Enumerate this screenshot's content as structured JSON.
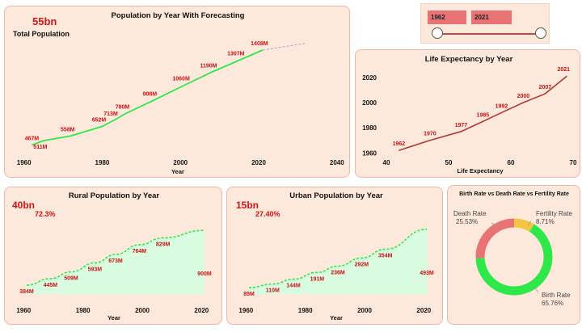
{
  "colors": {
    "panel": "#fde9dc",
    "border": "#f0b4a4",
    "green": "#2ee84a",
    "red_label": "#c81414",
    "life": "#b23a30",
    "death": "#e87274",
    "fertility": "#f4c542",
    "birth": "#2ee84a"
  },
  "total": {
    "value": "55bn",
    "label": "Total Population"
  },
  "slider": {
    "start": "1962",
    "end": "2021"
  },
  "rural": {
    "value": "40bn",
    "pct": "72.3%"
  },
  "urban": {
    "value": "15bn",
    "pct": "27.40%"
  },
  "donut_labels": {
    "death_name": "Death Rate",
    "death_pct": "25.53%",
    "fert_name": "Fertility Rate",
    "fert_pct": "8.71%",
    "birth_name": "Birth Rate",
    "birth_pct": "65.76%"
  },
  "chart_data": [
    {
      "type": "line",
      "title": "Population by Year With Forecasting",
      "xlabel": "Year",
      "xlim": [
        1958,
        2045
      ],
      "x_ticks": [
        1960,
        1980,
        2000,
        2020,
        2040
      ],
      "points": [
        {
          "x": 1962,
          "y": 467,
          "label": "467M"
        },
        {
          "x": 1965,
          "y": 511,
          "label": "511M"
        },
        {
          "x": 1972,
          "y": 558,
          "label": "558M"
        },
        {
          "x": 1980,
          "y": 652,
          "label": "652M"
        },
        {
          "x": 1983,
          "y": 713,
          "label": "713M"
        },
        {
          "x": 1986,
          "y": 780,
          "label": "780M"
        },
        {
          "x": 1993,
          "y": 908,
          "label": "908M"
        },
        {
          "x": 2001,
          "y": 1060,
          "label": "1060M"
        },
        {
          "x": 2008,
          "y": 1190,
          "label": "1190M"
        },
        {
          "x": 2015,
          "y": 1307,
          "label": "1307M"
        },
        {
          "x": 2021,
          "y": 1408,
          "label": "1408M"
        }
      ],
      "forecast": [
        {
          "x": 2021,
          "y": 1408
        },
        {
          "x": 2032,
          "y": 1475
        }
      ]
    },
    {
      "type": "line",
      "title": "Life Expectancy by Year",
      "xlabel": "Life Expectancy",
      "xlim": [
        40,
        70
      ],
      "ylim": [
        1957,
        2025
      ],
      "x_ticks": [
        40,
        50,
        60,
        70
      ],
      "y_ticks": [
        1960,
        1980,
        2000,
        2020
      ],
      "points": [
        {
          "x": 42,
          "y": 1962,
          "label": "1962"
        },
        {
          "x": 47,
          "y": 1970,
          "label": "1970"
        },
        {
          "x": 52,
          "y": 1977,
          "label": "1977"
        },
        {
          "x": 55.5,
          "y": 1985,
          "label": "1985"
        },
        {
          "x": 58.5,
          "y": 1992,
          "label": "1992"
        },
        {
          "x": 62,
          "y": 2000,
          "label": "2000"
        },
        {
          "x": 65.5,
          "y": 2007,
          "label": "2007"
        },
        {
          "x": 69,
          "y": 2021,
          "label": "2021"
        }
      ]
    },
    {
      "type": "area",
      "title": "Rural Population by Year",
      "xlabel": "Year",
      "xlim": [
        1958,
        2024
      ],
      "x_ticks": [
        1960,
        1980,
        2000,
        2020
      ],
      "points": [
        {
          "x": 1961,
          "y": 384,
          "label": "384M"
        },
        {
          "x": 1969,
          "y": 445,
          "label": "445M"
        },
        {
          "x": 1976,
          "y": 509,
          "label": "509M"
        },
        {
          "x": 1984,
          "y": 593,
          "label": "593M"
        },
        {
          "x": 1991,
          "y": 673,
          "label": "673M"
        },
        {
          "x": 1999,
          "y": 764,
          "label": "764M"
        },
        {
          "x": 2007,
          "y": 829,
          "label": "829M"
        },
        {
          "x": 2021,
          "y": 900,
          "label": "900M"
        }
      ]
    },
    {
      "type": "area",
      "title": "Urban Population by Year",
      "xlabel": "Year",
      "xlim": [
        1958,
        2024
      ],
      "x_ticks": [
        1960,
        1980,
        2000,
        2020
      ],
      "points": [
        {
          "x": 1961,
          "y": 85,
          "label": "85M"
        },
        {
          "x": 1969,
          "y": 110,
          "label": "110M"
        },
        {
          "x": 1976,
          "y": 144,
          "label": "144M"
        },
        {
          "x": 1984,
          "y": 191,
          "label": "191M"
        },
        {
          "x": 1991,
          "y": 236,
          "label": "236M"
        },
        {
          "x": 1999,
          "y": 292,
          "label": "292M"
        },
        {
          "x": 2007,
          "y": 354,
          "label": "354M"
        },
        {
          "x": 2021,
          "y": 493,
          "label": "493M"
        }
      ]
    },
    {
      "type": "pie",
      "title": "Birth Rate vs Death Rate vs Fertility Rate",
      "slices": [
        {
          "name": "Birth Rate",
          "value": 65.76
        },
        {
          "name": "Death Rate",
          "value": 25.53
        },
        {
          "name": "Fertility Rate",
          "value": 8.71
        }
      ]
    }
  ]
}
